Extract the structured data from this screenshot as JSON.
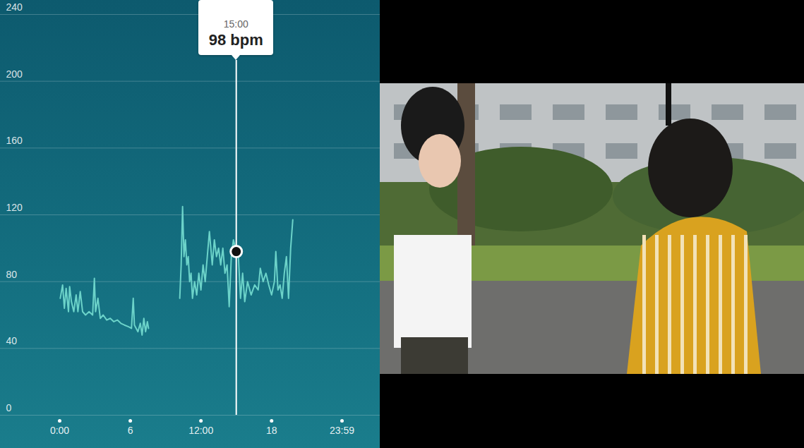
{
  "chart_data": {
    "type": "line",
    "x": [
      0.05,
      0.25,
      0.4,
      0.55,
      0.75,
      0.85,
      1.0,
      1.2,
      1.4,
      1.55,
      1.75,
      1.95,
      2.2,
      2.5,
      2.8,
      2.95,
      3.05,
      3.25,
      3.45,
      3.7,
      4.0,
      4.3,
      4.6,
      4.9,
      5.2,
      5.5,
      5.85,
      6.1,
      6.25,
      6.35,
      6.65,
      6.85,
      7.0,
      7.15,
      7.3,
      7.45,
      7.55,
      8.8,
      10.2,
      10.32,
      10.44,
      10.56,
      10.68,
      10.8,
      10.92,
      11.04,
      11.16,
      11.28,
      11.46,
      11.64,
      11.82,
      12.0,
      12.18,
      12.36,
      12.54,
      12.72,
      12.84,
      12.96,
      13.14,
      13.32,
      13.5,
      13.68,
      13.86,
      14.04,
      14.22,
      14.4,
      14.58,
      14.76,
      15.0,
      15.18,
      15.36,
      15.54,
      15.72,
      15.96,
      16.26,
      16.56,
      16.86,
      17.04,
      17.28,
      17.52,
      17.76,
      18.0,
      18.24,
      18.36,
      18.54,
      18.72,
      18.9,
      19.08,
      19.26,
      19.44,
      19.62,
      19.8
    ],
    "values": [
      70,
      78,
      64,
      76,
      62,
      77,
      68,
      62,
      72,
      62,
      74,
      62,
      60,
      62,
      60,
      82,
      62,
      70,
      58,
      60,
      57,
      58,
      56,
      57,
      55,
      54,
      53,
      52,
      70,
      54,
      50,
      55,
      48,
      58,
      50,
      56,
      52,
      null,
      70,
      90,
      125,
      95,
      105,
      90,
      95,
      80,
      85,
      70,
      80,
      72,
      85,
      75,
      90,
      80,
      95,
      110,
      100,
      90,
      105,
      95,
      100,
      90,
      100,
      85,
      90,
      65,
      95,
      105,
      98,
      95,
      70,
      85,
      68,
      80,
      72,
      78,
      75,
      88,
      80,
      85,
      78,
      72,
      80,
      98,
      75,
      78,
      70,
      85,
      95,
      70,
      100,
      117
    ],
    "color": "#6cd3c9",
    "xlim": [
      0,
      23.98
    ],
    "xticks": [
      {
        "value": 0,
        "label": "0:00"
      },
      6,
      {
        "value": 12,
        "label": "12:00"
      },
      18,
      {
        "value": 23.98,
        "label": "23:59"
      }
    ],
    "ylim": [
      0,
      240
    ],
    "yticks": [
      0,
      40,
      80,
      120,
      160,
      200,
      240
    ],
    "grid": true,
    "annotations": [
      {
        "x": 15,
        "y": 98,
        "time": "15:00",
        "label": "98 bpm"
      }
    ]
  }
}
